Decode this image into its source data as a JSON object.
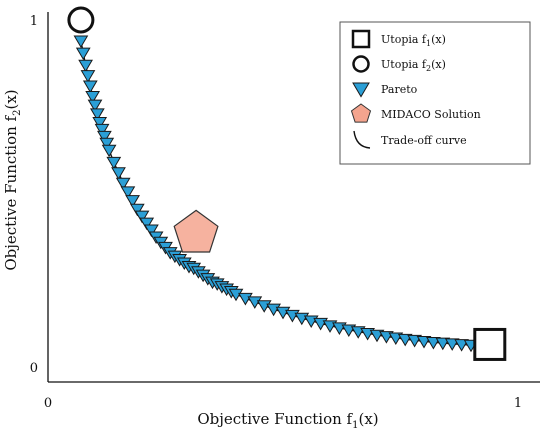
{
  "colors": {
    "pareto": "#2b9fd6",
    "pareto_stroke": "#1a1a1a",
    "midaco": "#f4a48e",
    "midaco_stroke": "#333333",
    "axis": "#111111"
  },
  "chart_data": {
    "type": "scatter",
    "xlabel_main": "Objective Function f",
    "xlabel_sub": "1",
    "xlabel_tail": "(x)",
    "ylabel_main": "Objective Function f",
    "ylabel_sub": "2",
    "ylabel_tail": "(x)",
    "xlim": [
      0,
      1
    ],
    "ylim": [
      0,
      1
    ],
    "x_ticks": [
      {
        "value": 0,
        "label": "0"
      },
      {
        "value": 1,
        "label": "1"
      }
    ],
    "y_ticks": [
      {
        "value": 0,
        "label": "0"
      },
      {
        "value": 1,
        "label": "1"
      }
    ],
    "grid": false,
    "legend_position": "top-right",
    "legend": [
      {
        "key": "utopia1",
        "label_main": "Utopia f",
        "label_sub": "1",
        "label_tail": "(x)"
      },
      {
        "key": "utopia2",
        "label_main": "Utopia f",
        "label_sub": "2",
        "label_tail": "(x)"
      },
      {
        "key": "pareto",
        "label_main": "Pareto",
        "label_sub": "",
        "label_tail": ""
      },
      {
        "key": "midaco",
        "label_main": "MIDACO Solution",
        "label_sub": "",
        "label_tail": ""
      },
      {
        "key": "curve",
        "label_main": "Trade-off curve",
        "label_sub": "",
        "label_tail": ""
      }
    ],
    "utopia_f1": {
      "x": 0.94,
      "y": 0.065
    },
    "utopia_f2": {
      "x": 0.07,
      "y": 1.0
    },
    "midaco_solution": {
      "x": 0.315,
      "y": 0.385
    },
    "pareto": {
      "x": [
        0.07,
        0.075,
        0.08,
        0.085,
        0.09,
        0.095,
        0.1,
        0.105,
        0.11,
        0.115,
        0.12,
        0.125,
        0.13,
        0.14,
        0.15,
        0.16,
        0.17,
        0.18,
        0.19,
        0.2,
        0.21,
        0.22,
        0.23,
        0.24,
        0.25,
        0.26,
        0.27,
        0.28,
        0.29,
        0.3,
        0.31,
        0.32,
        0.33,
        0.34,
        0.35,
        0.36,
        0.37,
        0.38,
        0.39,
        0.4,
        0.42,
        0.44,
        0.46,
        0.48,
        0.5,
        0.52,
        0.54,
        0.56,
        0.58,
        0.6,
        0.62,
        0.64,
        0.66,
        0.68,
        0.7,
        0.72,
        0.74,
        0.76,
        0.78,
        0.8,
        0.82,
        0.84,
        0.86,
        0.88,
        0.9,
        0.92
      ],
      "y": [
        0.94,
        0.905,
        0.87,
        0.84,
        0.81,
        0.78,
        0.755,
        0.73,
        0.705,
        0.685,
        0.665,
        0.645,
        0.625,
        0.59,
        0.56,
        0.53,
        0.505,
        0.48,
        0.455,
        0.435,
        0.415,
        0.395,
        0.375,
        0.36,
        0.345,
        0.33,
        0.32,
        0.31,
        0.3,
        0.29,
        0.285,
        0.275,
        0.265,
        0.255,
        0.245,
        0.24,
        0.232,
        0.225,
        0.218,
        0.21,
        0.198,
        0.188,
        0.177,
        0.167,
        0.158,
        0.149,
        0.141,
        0.133,
        0.126,
        0.119,
        0.113,
        0.107,
        0.102,
        0.097,
        0.092,
        0.088,
        0.084,
        0.08,
        0.077,
        0.074,
        0.071,
        0.069,
        0.067,
        0.065,
        0.063,
        0.061
      ]
    }
  }
}
